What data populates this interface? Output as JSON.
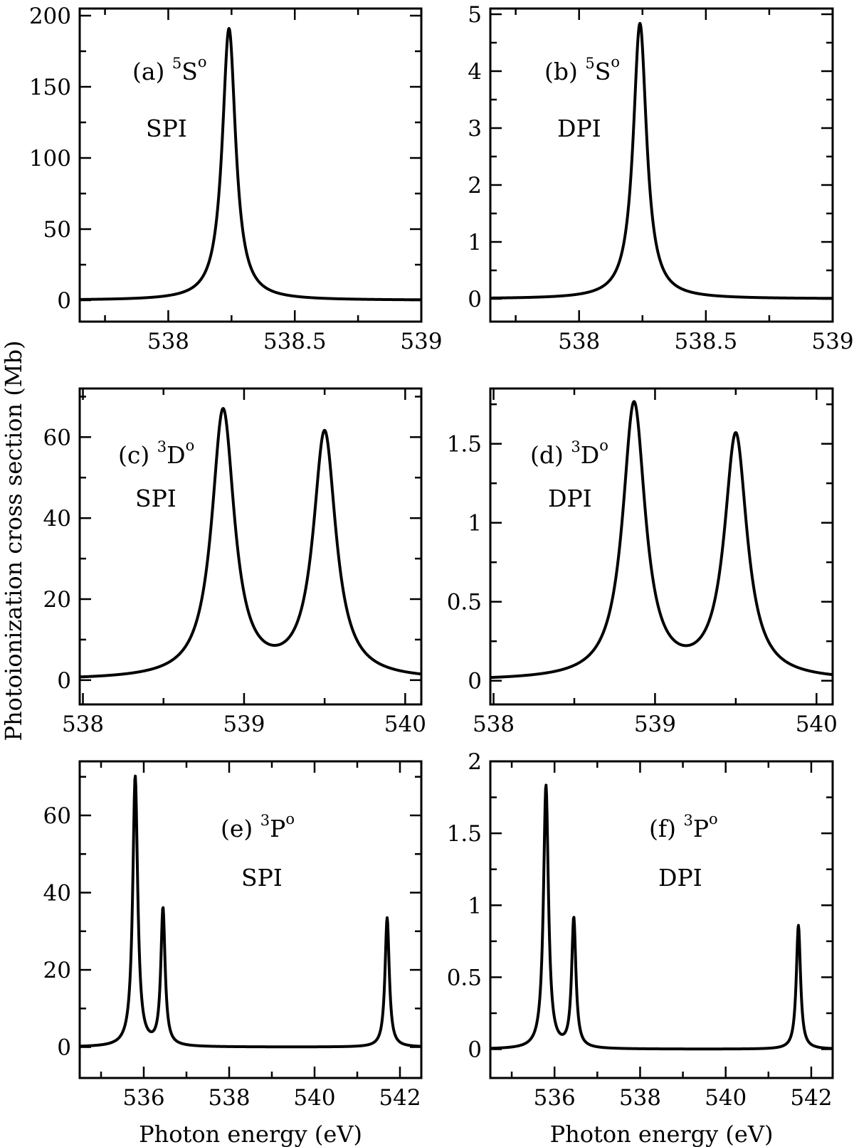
{
  "figure": {
    "shared_ylabel": "Photoionization cross section (Mb)"
  },
  "chart_data": [
    {
      "id": "a",
      "type": "line",
      "annotation": {
        "prefix": "(a) ",
        "sup": "5",
        "base": "S",
        "supo": "o",
        "method": "SPI"
      },
      "xlim": [
        537.65,
        539
      ],
      "ylim": [
        -15,
        205
      ],
      "xticks": [
        538,
        538.5,
        539
      ],
      "xtick_labels": [
        "538",
        "538.5",
        "539"
      ],
      "yticks": [
        0,
        50,
        100,
        150,
        200
      ],
      "ytick_labels": [
        "0",
        "50",
        "100",
        "150",
        "200"
      ],
      "xlabel": "",
      "peaks": [
        {
          "center": 538.24,
          "height": 191,
          "width": 0.032
        }
      ]
    },
    {
      "id": "b",
      "type": "line",
      "annotation": {
        "prefix": "(b) ",
        "sup": "5",
        "base": "S",
        "supo": "o",
        "method": "DPI"
      },
      "xlim": [
        537.65,
        539
      ],
      "ylim": [
        -0.4,
        5.1
      ],
      "xticks": [
        538,
        538.5,
        539
      ],
      "xtick_labels": [
        "538",
        "538.5",
        "539"
      ],
      "yticks": [
        0,
        1,
        2,
        3,
        4,
        5
      ],
      "ytick_labels": [
        "0",
        "1",
        "2",
        "3",
        "4",
        "5"
      ],
      "xlabel": "",
      "peaks": [
        {
          "center": 538.24,
          "height": 4.84,
          "width": 0.032
        }
      ]
    },
    {
      "id": "c",
      "type": "line",
      "annotation": {
        "prefix": "(c) ",
        "sup": "3",
        "base": "D",
        "supo": "o",
        "method": "SPI"
      },
      "xlim": [
        537.98,
        540.1
      ],
      "ylim": [
        -6,
        72
      ],
      "xticks": [
        538,
        539,
        540
      ],
      "xtick_labels": [
        "538",
        "539",
        "540"
      ],
      "yticks": [
        0,
        20,
        40,
        60
      ],
      "ytick_labels": [
        "0",
        "20",
        "40",
        "60"
      ],
      "xlabel": "",
      "peaks": [
        {
          "center": 538.87,
          "height": 66,
          "width": 0.085
        },
        {
          "center": 539.5,
          "height": 60.5,
          "width": 0.085
        }
      ]
    },
    {
      "id": "d",
      "type": "line",
      "annotation": {
        "prefix": "(d) ",
        "sup": "3",
        "base": "D",
        "supo": "o",
        "method": "DPI"
      },
      "xlim": [
        537.98,
        540.1
      ],
      "ylim": [
        -0.15,
        1.85
      ],
      "xticks": [
        538,
        539,
        540
      ],
      "xtick_labels": [
        "538",
        "539",
        "540"
      ],
      "yticks": [
        0,
        0.5,
        1,
        1.5
      ],
      "ytick_labels": [
        "0",
        "0.5",
        "1",
        "1.5"
      ],
      "xlabel": "",
      "peaks": [
        {
          "center": 538.87,
          "height": 1.74,
          "width": 0.085
        },
        {
          "center": 539.5,
          "height": 1.54,
          "width": 0.085
        }
      ]
    },
    {
      "id": "e",
      "type": "line",
      "annotation": {
        "prefix": "(e) ",
        "sup": "3",
        "base": "P",
        "supo": "o",
        "method": "SPI"
      },
      "xlim": [
        534.5,
        542.5
      ],
      "ylim": [
        -8,
        74
      ],
      "xticks": [
        536,
        538,
        540,
        542
      ],
      "xtick_labels": [
        "536",
        "538",
        "540",
        "542"
      ],
      "yticks": [
        0,
        20,
        40,
        60
      ],
      "ytick_labels": [
        "0",
        "20",
        "40",
        "60"
      ],
      "xlabel": "Photon energy (eV)",
      "peaks": [
        {
          "center": 535.8,
          "height": 70,
          "width": 0.07
        },
        {
          "center": 536.45,
          "height": 35.5,
          "width": 0.06
        },
        {
          "center": 541.7,
          "height": 33.5,
          "width": 0.06
        }
      ]
    },
    {
      "id": "f",
      "type": "line",
      "annotation": {
        "prefix": "(f) ",
        "sup": "3",
        "base": "P",
        "supo": "o",
        "method": "DPI"
      },
      "xlim": [
        534.5,
        542.5
      ],
      "ylim": [
        -0.2,
        2.0
      ],
      "xticks": [
        536,
        538,
        540,
        542
      ],
      "xtick_labels": [
        "536",
        "538",
        "540",
        "542"
      ],
      "yticks": [
        0,
        0.5,
        1,
        1.5,
        2
      ],
      "ytick_labels": [
        "0",
        "0.5",
        "1",
        "1.5",
        "2"
      ],
      "xlabel": "Photon energy (eV)",
      "peaks": [
        {
          "center": 535.8,
          "height": 1.83,
          "width": 0.07
        },
        {
          "center": 536.45,
          "height": 0.9,
          "width": 0.06
        },
        {
          "center": 541.7,
          "height": 0.86,
          "width": 0.06
        }
      ]
    }
  ]
}
